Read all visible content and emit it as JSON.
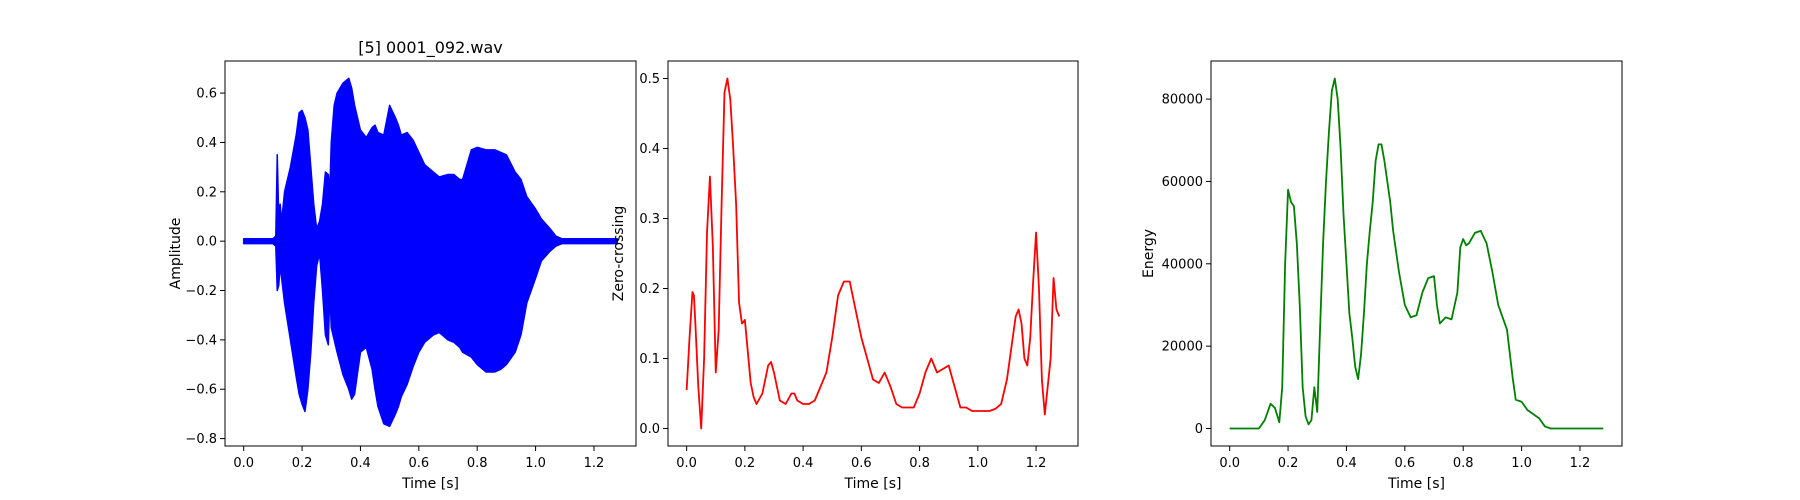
{
  "chart_data": [
    {
      "type": "line",
      "title": "[5] 0001_092.wav",
      "xlabel": "Time [s]",
      "ylabel": "Amplitude",
      "xlim": [
        -0.064,
        1.344
      ],
      "ylim": [
        -0.83,
        0.73
      ],
      "xticks": [
        0.0,
        0.2,
        0.4,
        0.6,
        0.8,
        1.0,
        1.2
      ],
      "xtick_labels": [
        "0.0",
        "0.2",
        "0.4",
        "0.6",
        "0.8",
        "1.0",
        "1.2"
      ],
      "yticks": [
        -0.8,
        -0.6,
        -0.4,
        -0.2,
        0.0,
        0.2,
        0.4,
        0.6
      ],
      "ytick_labels": [
        "−0.8",
        "−0.6",
        "−0.4",
        "−0.2",
        "0.0",
        "0.2",
        "0.4",
        "0.6"
      ],
      "grid": false,
      "color": "#0000ff",
      "series": [
        {
          "render": "envelope",
          "x": [
            0.0,
            0.1,
            0.11,
            0.115,
            0.12,
            0.125,
            0.13,
            0.14,
            0.16,
            0.18,
            0.19,
            0.2,
            0.21,
            0.22,
            0.23,
            0.24,
            0.25,
            0.26,
            0.27,
            0.28,
            0.29,
            0.295,
            0.3,
            0.31,
            0.32,
            0.34,
            0.36,
            0.37,
            0.38,
            0.4,
            0.42,
            0.44,
            0.45,
            0.46,
            0.48,
            0.5,
            0.52,
            0.53,
            0.54,
            0.56,
            0.58,
            0.6,
            0.62,
            0.65,
            0.67,
            0.7,
            0.72,
            0.74,
            0.75,
            0.78,
            0.8,
            0.83,
            0.86,
            0.88,
            0.9,
            0.93,
            0.95,
            0.97,
            1.0,
            1.02,
            1.05,
            1.07,
            1.09,
            1.1,
            1.15,
            1.2,
            1.25,
            1.28
          ],
          "upper": [
            0.01,
            0.01,
            0.02,
            0.35,
            0.1,
            0.15,
            0.08,
            0.2,
            0.3,
            0.43,
            0.52,
            0.53,
            0.5,
            0.45,
            0.3,
            0.15,
            0.05,
            0.08,
            0.15,
            0.28,
            0.27,
            0.2,
            0.4,
            0.55,
            0.6,
            0.64,
            0.66,
            0.62,
            0.55,
            0.45,
            0.42,
            0.46,
            0.47,
            0.44,
            0.43,
            0.55,
            0.5,
            0.47,
            0.43,
            0.44,
            0.41,
            0.36,
            0.31,
            0.28,
            0.26,
            0.27,
            0.27,
            0.25,
            0.25,
            0.37,
            0.38,
            0.37,
            0.37,
            0.36,
            0.35,
            0.28,
            0.25,
            0.18,
            0.13,
            0.09,
            0.05,
            0.02,
            0.01,
            0.01,
            0.01,
            0.01,
            0.01,
            0.01
          ],
          "lower": [
            -0.01,
            -0.01,
            -0.02,
            -0.2,
            -0.18,
            -0.1,
            -0.15,
            -0.25,
            -0.4,
            -0.55,
            -0.62,
            -0.66,
            -0.69,
            -0.6,
            -0.45,
            -0.25,
            -0.1,
            -0.05,
            -0.2,
            -0.38,
            -0.42,
            -0.2,
            -0.35,
            -0.4,
            -0.45,
            -0.54,
            -0.6,
            -0.64,
            -0.62,
            -0.45,
            -0.43,
            -0.52,
            -0.6,
            -0.67,
            -0.74,
            -0.75,
            -0.7,
            -0.67,
            -0.63,
            -0.58,
            -0.51,
            -0.45,
            -0.41,
            -0.38,
            -0.37,
            -0.4,
            -0.41,
            -0.43,
            -0.45,
            -0.47,
            -0.5,
            -0.53,
            -0.53,
            -0.52,
            -0.5,
            -0.45,
            -0.38,
            -0.25,
            -0.15,
            -0.08,
            -0.04,
            -0.02,
            -0.01,
            -0.01,
            -0.01,
            -0.01,
            -0.01,
            -0.01
          ]
        }
      ]
    },
    {
      "type": "line",
      "title": "",
      "xlabel": "Time [s]",
      "ylabel": "Zero-crossing",
      "xlim": [
        -0.064,
        1.344
      ],
      "ylim": [
        -0.025,
        0.525
      ],
      "xticks": [
        0.0,
        0.2,
        0.4,
        0.6,
        0.8,
        1.0,
        1.2
      ],
      "xtick_labels": [
        "0.0",
        "0.2",
        "0.4",
        "0.6",
        "0.8",
        "1.0",
        "1.2"
      ],
      "yticks": [
        0.0,
        0.1,
        0.2,
        0.3,
        0.4,
        0.5
      ],
      "ytick_labels": [
        "0.0",
        "0.1",
        "0.2",
        "0.3",
        "0.4",
        "0.5"
      ],
      "grid": false,
      "color": "#ff0000",
      "series": [
        {
          "x": [
            0.0,
            0.01,
            0.02,
            0.025,
            0.03,
            0.04,
            0.05,
            0.06,
            0.07,
            0.08,
            0.09,
            0.1,
            0.11,
            0.12,
            0.13,
            0.14,
            0.15,
            0.16,
            0.17,
            0.18,
            0.19,
            0.2,
            0.21,
            0.22,
            0.23,
            0.24,
            0.26,
            0.28,
            0.29,
            0.3,
            0.31,
            0.32,
            0.34,
            0.36,
            0.37,
            0.38,
            0.4,
            0.42,
            0.44,
            0.46,
            0.48,
            0.5,
            0.52,
            0.54,
            0.56,
            0.58,
            0.6,
            0.62,
            0.64,
            0.66,
            0.68,
            0.7,
            0.72,
            0.74,
            0.76,
            0.78,
            0.8,
            0.82,
            0.84,
            0.86,
            0.88,
            0.9,
            0.92,
            0.94,
            0.96,
            0.98,
            1.0,
            1.02,
            1.04,
            1.06,
            1.08,
            1.1,
            1.11,
            1.12,
            1.13,
            1.14,
            1.15,
            1.16,
            1.17,
            1.18,
            1.19,
            1.2,
            1.21,
            1.22,
            1.23,
            1.24,
            1.25,
            1.26,
            1.27,
            1.28
          ],
          "y": [
            0.055,
            0.13,
            0.195,
            0.19,
            0.15,
            0.06,
            0.0,
            0.1,
            0.28,
            0.36,
            0.26,
            0.08,
            0.14,
            0.32,
            0.48,
            0.5,
            0.47,
            0.4,
            0.32,
            0.18,
            0.15,
            0.155,
            0.11,
            0.065,
            0.045,
            0.035,
            0.05,
            0.09,
            0.095,
            0.08,
            0.06,
            0.04,
            0.035,
            0.05,
            0.05,
            0.04,
            0.035,
            0.035,
            0.04,
            0.06,
            0.08,
            0.13,
            0.19,
            0.21,
            0.21,
            0.17,
            0.13,
            0.1,
            0.07,
            0.065,
            0.08,
            0.06,
            0.035,
            0.03,
            0.03,
            0.03,
            0.05,
            0.08,
            0.1,
            0.08,
            0.085,
            0.09,
            0.06,
            0.03,
            0.03,
            0.025,
            0.025,
            0.025,
            0.025,
            0.028,
            0.035,
            0.07,
            0.1,
            0.13,
            0.16,
            0.17,
            0.15,
            0.1,
            0.09,
            0.13,
            0.21,
            0.28,
            0.2,
            0.07,
            0.02,
            0.06,
            0.1,
            0.215,
            0.17,
            0.16
          ]
        }
      ]
    },
    {
      "type": "line",
      "title": "",
      "xlabel": "Time [s]",
      "ylabel": "Energy",
      "xlim": [
        -0.064,
        1.344
      ],
      "ylim": [
        -4250,
        89250
      ],
      "xticks": [
        0.0,
        0.2,
        0.4,
        0.6,
        0.8,
        1.0,
        1.2
      ],
      "xtick_labels": [
        "0.0",
        "0.2",
        "0.4",
        "0.6",
        "0.8",
        "1.0",
        "1.2"
      ],
      "yticks": [
        0,
        20000,
        40000,
        60000,
        80000
      ],
      "ytick_labels": [
        "0",
        "20000",
        "40000",
        "60000",
        "80000"
      ],
      "grid": false,
      "color": "#008000",
      "series": [
        {
          "x": [
            0.0,
            0.1,
            0.12,
            0.14,
            0.155,
            0.17,
            0.18,
            0.19,
            0.2,
            0.21,
            0.22,
            0.23,
            0.24,
            0.25,
            0.26,
            0.27,
            0.28,
            0.29,
            0.3,
            0.31,
            0.32,
            0.33,
            0.34,
            0.35,
            0.36,
            0.37,
            0.38,
            0.39,
            0.4,
            0.41,
            0.42,
            0.43,
            0.44,
            0.45,
            0.46,
            0.47,
            0.48,
            0.49,
            0.5,
            0.51,
            0.52,
            0.53,
            0.54,
            0.55,
            0.56,
            0.58,
            0.6,
            0.62,
            0.64,
            0.66,
            0.68,
            0.7,
            0.71,
            0.72,
            0.74,
            0.76,
            0.78,
            0.79,
            0.8,
            0.81,
            0.82,
            0.84,
            0.86,
            0.88,
            0.9,
            0.92,
            0.94,
            0.95,
            0.96,
            0.97,
            0.98,
            1.0,
            1.02,
            1.04,
            1.06,
            1.08,
            1.1,
            1.2,
            1.28
          ],
          "y": [
            0,
            0,
            2000,
            6000,
            5000,
            1500,
            10000,
            40000,
            58000,
            55000,
            54000,
            45000,
            30000,
            10000,
            3000,
            1000,
            2000,
            10000,
            4000,
            25000,
            45000,
            60000,
            72000,
            82000,
            85000,
            80000,
            68000,
            52000,
            40000,
            28000,
            22000,
            15000,
            12000,
            18000,
            28000,
            40000,
            48000,
            55000,
            65000,
            69000,
            69000,
            65000,
            60000,
            55000,
            48000,
            38000,
            30000,
            27000,
            27500,
            33000,
            36500,
            37000,
            30000,
            25500,
            27000,
            26500,
            33000,
            44000,
            46000,
            44500,
            45000,
            47500,
            48000,
            45000,
            38000,
            30000,
            26000,
            24000,
            18000,
            12000,
            7000,
            6500,
            4500,
            3500,
            2500,
            500,
            0,
            0,
            0
          ]
        }
      ]
    }
  ]
}
